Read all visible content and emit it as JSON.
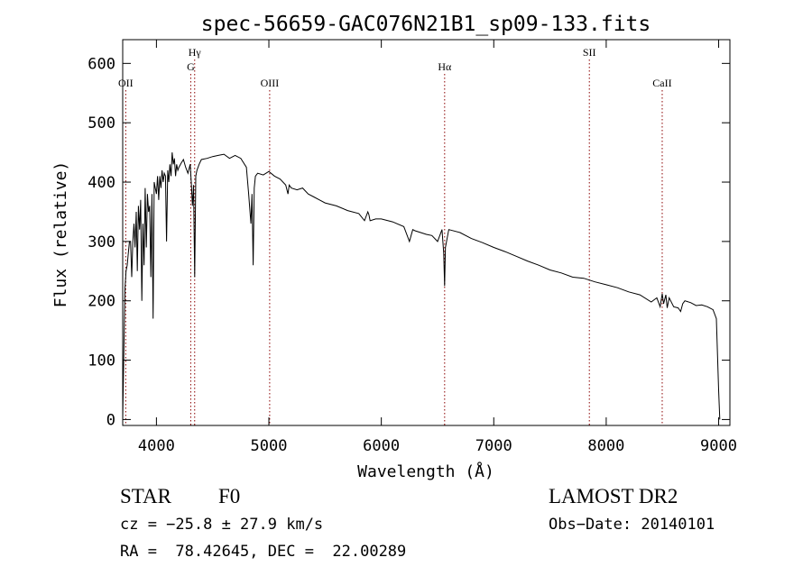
{
  "chart_data": {
    "type": "line",
    "title": "spec-56659-GAC076N21B1_sp09-133.fits",
    "xlabel": "Wavelength (Å)",
    "ylabel": "Flux (relative)",
    "xlim": [
      3700,
      9100
    ],
    "ylim": [
      -10,
      640
    ],
    "xticks": [
      4000,
      5000,
      6000,
      7000,
      8000,
      9000
    ],
    "yticks": [
      0,
      100,
      200,
      300,
      400,
      500,
      600
    ],
    "grid": false,
    "line_color": "#000000",
    "marker_color": "#8b0000",
    "lines": [
      {
        "label": "OII",
        "wavelength": 3727,
        "label_row": "low"
      },
      {
        "label": "Hγ",
        "wavelength": 4340,
        "label_row": "top"
      },
      {
        "label": "G",
        "wavelength": 4305,
        "label_row": "mid"
      },
      {
        "label": "OIII",
        "wavelength": 5007,
        "label_row": "low"
      },
      {
        "label": "Hα",
        "wavelength": 6563,
        "label_row": "mid"
      },
      {
        "label": "SII",
        "wavelength": 7850,
        "label_row": "top"
      },
      {
        "label": "CaII",
        "wavelength": 8498,
        "label_row": "low"
      }
    ],
    "series": [
      {
        "x": [
          3700,
          3710,
          3720,
          3730,
          3740,
          3750,
          3760,
          3770,
          3780,
          3790,
          3800,
          3810,
          3820,
          3830,
          3840,
          3850,
          3860,
          3870,
          3880,
          3890,
          3900,
          3910,
          3920,
          3930,
          3940,
          3950,
          3960,
          3970,
          3980,
          3990,
          4000,
          4010,
          4020,
          4030,
          4040,
          4050,
          4060,
          4070,
          4080,
          4090,
          4100,
          4110,
          4120,
          4130,
          4140,
          4150,
          4160,
          4170,
          4180,
          4190,
          4200,
          4220,
          4240,
          4260,
          4280,
          4300,
          4310,
          4320,
          4330,
          4340,
          4350,
          4360,
          4380,
          4400,
          4450,
          4500,
          4550,
          4600,
          4650,
          4700,
          4750,
          4800,
          4820,
          4840,
          4850,
          4860,
          4870,
          4880,
          4900,
          4950,
          5000,
          5050,
          5100,
          5150,
          5170,
          5180,
          5200,
          5250,
          5300,
          5350,
          5400,
          5450,
          5500,
          5600,
          5700,
          5800,
          5850,
          5880,
          5890,
          5900,
          5950,
          6000,
          6100,
          6200,
          6250,
          6280,
          6300,
          6350,
          6400,
          6450,
          6500,
          6540,
          6555,
          6563,
          6570,
          6600,
          6700,
          6800,
          6900,
          7000,
          7100,
          7200,
          7300,
          7400,
          7500,
          7600,
          7700,
          7800,
          7850,
          7900,
          8000,
          8100,
          8200,
          8300,
          8400,
          8450,
          8480,
          8498,
          8510,
          8530,
          8542,
          8560,
          8600,
          8640,
          8662,
          8680,
          8700,
          8750,
          8800,
          8850,
          8900,
          8950,
          8980,
          9000,
          9010
        ],
        "y": [
          0,
          110,
          220,
          250,
          260,
          280,
          300,
          300,
          240,
          300,
          330,
          290,
          350,
          250,
          360,
          320,
          370,
          200,
          330,
          260,
          390,
          290,
          380,
          350,
          360,
          240,
          380,
          170,
          400,
          390,
          380,
          410,
          370,
          410,
          390,
          420,
          400,
          415,
          410,
          300,
          420,
          400,
          430,
          410,
          450,
          430,
          440,
          410,
          430,
          420,
          425,
          432,
          438,
          425,
          415,
          430,
          400,
          360,
          395,
          240,
          410,
          420,
          430,
          438,
          440,
          443,
          445,
          447,
          440,
          445,
          440,
          425,
          380,
          330,
          380,
          260,
          390,
          410,
          415,
          412,
          418,
          410,
          405,
          395,
          380,
          395,
          390,
          387,
          390,
          380,
          375,
          370,
          365,
          360,
          352,
          347,
          335,
          350,
          345,
          335,
          338,
          338,
          333,
          325,
          300,
          320,
          318,
          315,
          312,
          310,
          300,
          320,
          280,
          225,
          290,
          320,
          315,
          305,
          298,
          290,
          283,
          275,
          267,
          260,
          252,
          247,
          240,
          238,
          235,
          232,
          227,
          222,
          215,
          210,
          198,
          205,
          190,
          212,
          195,
          210,
          188,
          205,
          190,
          188,
          182,
          195,
          200,
          197,
          192,
          193,
          190,
          185,
          170,
          50,
          0
        ]
      }
    ]
  },
  "info": {
    "object_class": "STAR",
    "subclass": "F0",
    "survey": "LAMOST DR2",
    "cz_line": "cz = −25.8 ± 27.9 km/s",
    "obs_date": "Obs−Date: 20140101",
    "coords": "RA =  78.42645, DEC =  22.00289"
  }
}
